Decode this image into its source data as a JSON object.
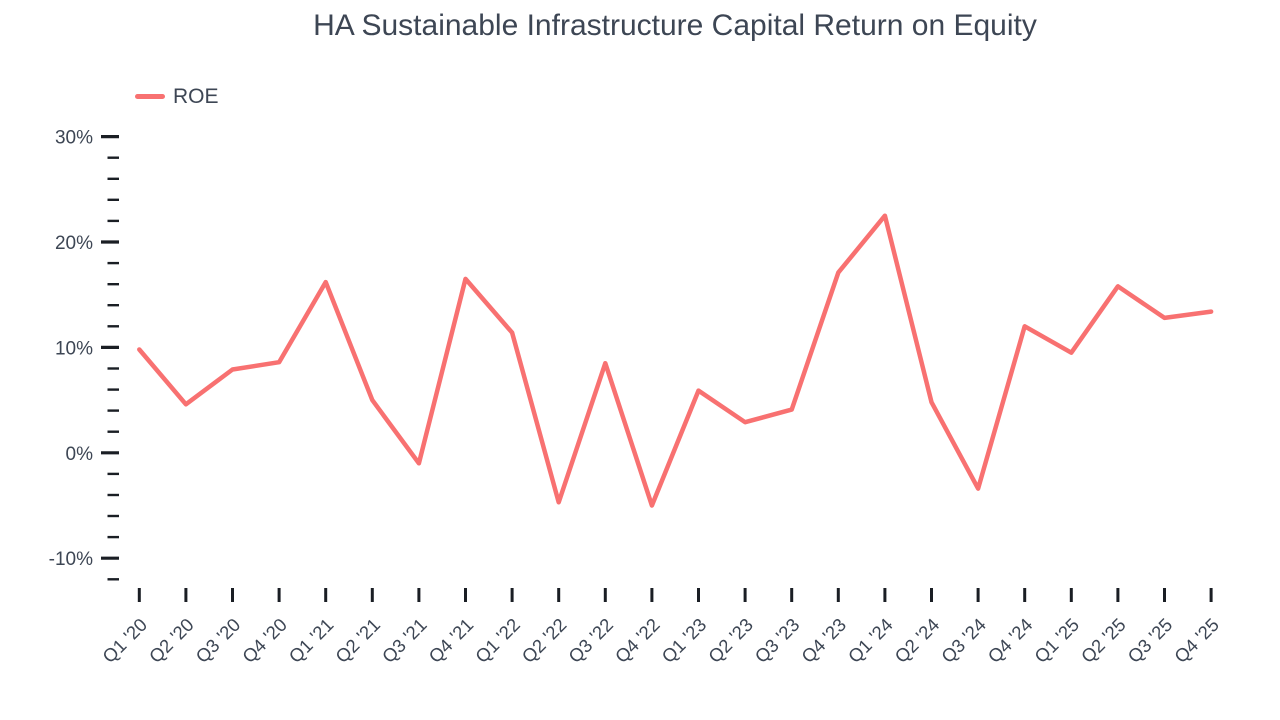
{
  "colors": {
    "background": "#ffffff",
    "line": "#f87171",
    "text": "#3d4654",
    "tick": "#1a1e24"
  },
  "header": {
    "title": "HA Sustainable Infrastructure Capital Return on Equity"
  },
  "legend": {
    "items": [
      {
        "label": "ROE",
        "color": "#f87171"
      }
    ]
  },
  "chart_data": {
    "type": "line",
    "title": "HA Sustainable Infrastructure Capital Return on Equity",
    "xlabel": "",
    "ylabel": "",
    "grid": false,
    "legend_position": "top-left",
    "categories": [
      "Q1 '20",
      "Q2 '20",
      "Q3 '20",
      "Q4 '20",
      "Q1 '21",
      "Q2 '21",
      "Q3 '21",
      "Q4 '21",
      "Q1 '22",
      "Q2 '22",
      "Q3 '22",
      "Q4 '22",
      "Q1 '23",
      "Q2 '23",
      "Q3 '23",
      "Q4 '23",
      "Q1 '24",
      "Q2 '24",
      "Q3 '24",
      "Q4 '24",
      "Q1 '25",
      "Q2 '25",
      "Q3 '25",
      "Q4 '25"
    ],
    "series": [
      {
        "name": "ROE",
        "color": "#f87171",
        "values": [
          9.8,
          4.6,
          7.9,
          8.6,
          16.2,
          5.0,
          -1.0,
          16.5,
          11.4,
          -4.7,
          8.5,
          -5.0,
          5.9,
          2.9,
          4.1,
          17.1,
          22.5,
          4.8,
          -3.4,
          12.0,
          9.5,
          15.8,
          12.8,
          13.4
        ]
      }
    ],
    "y_axis": {
      "unit": "%",
      "min": -12,
      "max": 30,
      "minor_step": 2,
      "major_step": 10,
      "major_tick_values": [
        30,
        20,
        10,
        0,
        -10
      ],
      "major_tick_labels": [
        "30%",
        "20%",
        "10%",
        "0%",
        "-10%"
      ]
    }
  }
}
